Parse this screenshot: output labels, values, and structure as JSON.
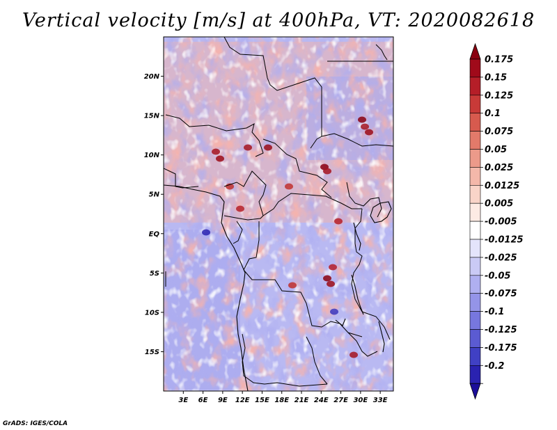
{
  "title": "Vertical velocity [m/s] at 400hPa, VT: 2020082618",
  "credit": "GrADS: IGES/COLA",
  "map": {
    "field": "Vertical velocity",
    "units": "m/s",
    "level": "400hPa",
    "valid_time": "2020082618",
    "lon_range": [
      0,
      35
    ],
    "lat_range": [
      -20,
      25
    ],
    "lat_ticks": [
      {
        "value": 20,
        "label": "20N"
      },
      {
        "value": 15,
        "label": "15N"
      },
      {
        "value": 10,
        "label": "10N"
      },
      {
        "value": 5,
        "label": "5N"
      },
      {
        "value": 0,
        "label": "EQ"
      },
      {
        "value": -5,
        "label": "5S"
      },
      {
        "value": -10,
        "label": "10S"
      },
      {
        "value": -15,
        "label": "15S"
      }
    ],
    "lon_ticks": [
      {
        "value": 3,
        "label": "3E"
      },
      {
        "value": 6,
        "label": "6E"
      },
      {
        "value": 9,
        "label": "9E"
      },
      {
        "value": 12,
        "label": "12E"
      },
      {
        "value": 15,
        "label": "15E"
      },
      {
        "value": 18,
        "label": "18E"
      },
      {
        "value": 21,
        "label": "21E"
      },
      {
        "value": 24,
        "label": "24E"
      },
      {
        "value": 27,
        "label": "27E"
      },
      {
        "value": 30,
        "label": "30E"
      },
      {
        "value": 33,
        "label": "33E"
      }
    ]
  },
  "colorbar": {
    "levels": [
      {
        "label": "0.175",
        "color": "#a00a1a"
      },
      {
        "label": "0.15",
        "color": "#b51e28"
      },
      {
        "label": "0.125",
        "color": "#c83a38"
      },
      {
        "label": "0.1",
        "color": "#d75a4e"
      },
      {
        "label": "0.075",
        "color": "#e27a6a"
      },
      {
        "label": "0.05",
        "color": "#ec9a8a"
      },
      {
        "label": "0.025",
        "color": "#f4b8aa"
      },
      {
        "label": "0.0125",
        "color": "#f9d4c8"
      },
      {
        "label": "0.005",
        "color": "#fdebe4"
      },
      {
        "label": "-0.005",
        "color": "#ffffff"
      },
      {
        "label": "-0.0125",
        "color": "#e4e4fb"
      },
      {
        "label": "-0.025",
        "color": "#cacaf5"
      },
      {
        "label": "-0.05",
        "color": "#afaff0"
      },
      {
        "label": "-0.075",
        "color": "#9494e8"
      },
      {
        "label": "-0.1",
        "color": "#7777de"
      },
      {
        "label": "-0.125",
        "color": "#5b5bd2"
      },
      {
        "label": "-0.175",
        "color": "#4040c4"
      },
      {
        "label": "-0.2",
        "color": "#2a22b0"
      }
    ],
    "top_color": "#8a0010",
    "bottom_color": "#1c0e9a"
  }
}
